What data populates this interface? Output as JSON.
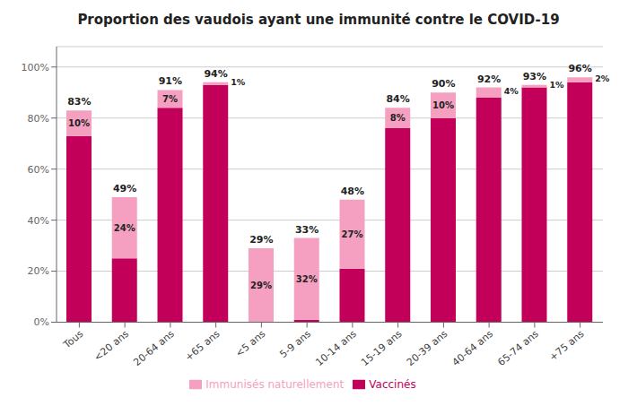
{
  "chart_data": {
    "type": "bar",
    "title": "Proportion des vaudois ayant une immunité contre le COVID-19",
    "categories": [
      "Tous",
      "<20 ans",
      "20-64 ans",
      "+65 ans",
      "<5 ans",
      "5-9 ans",
      "10-14 ans",
      "15-19 ans",
      "20-39 ans",
      "40-64 ans",
      "65-74 ans",
      "+75 ans"
    ],
    "series": [
      {
        "name": "Vaccinés",
        "color": "#c2005a",
        "values": [
          73,
          25,
          84,
          93,
          0,
          1,
          21,
          76,
          80,
          88,
          92,
          94
        ]
      },
      {
        "name": "Immunisés naturellement",
        "color": "#f5a0c0",
        "values": [
          10,
          24,
          7,
          1,
          29,
          32,
          27,
          8,
          10,
          4,
          1,
          2
        ],
        "value_labels": [
          "10%",
          "24%",
          "7%",
          "1%",
          "29%",
          "32%",
          "27%",
          "8%",
          "10%",
          "4%",
          "1%",
          "2%"
        ]
      }
    ],
    "totals": [
      83,
      49,
      91,
      94,
      29,
      33,
      48,
      84,
      90,
      92,
      93,
      96
    ],
    "total_labels": [
      "83%",
      "49%",
      "91%",
      "94%",
      "29%",
      "33%",
      "48%",
      "84%",
      "90%",
      "92%",
      "93%",
      "96%"
    ],
    "stacked": true,
    "data_labels": true,
    "ylim": [
      0,
      108
    ],
    "yticks": [
      {
        "value": 0,
        "label": "0%"
      },
      {
        "value": 20,
        "label": "20%"
      },
      {
        "value": 40,
        "label": "40%"
      },
      {
        "value": 60,
        "label": "60%"
      },
      {
        "value": 80,
        "label": "80%"
      },
      {
        "value": 100,
        "label": "100%"
      }
    ],
    "grid": true,
    "legend": "bottom"
  }
}
